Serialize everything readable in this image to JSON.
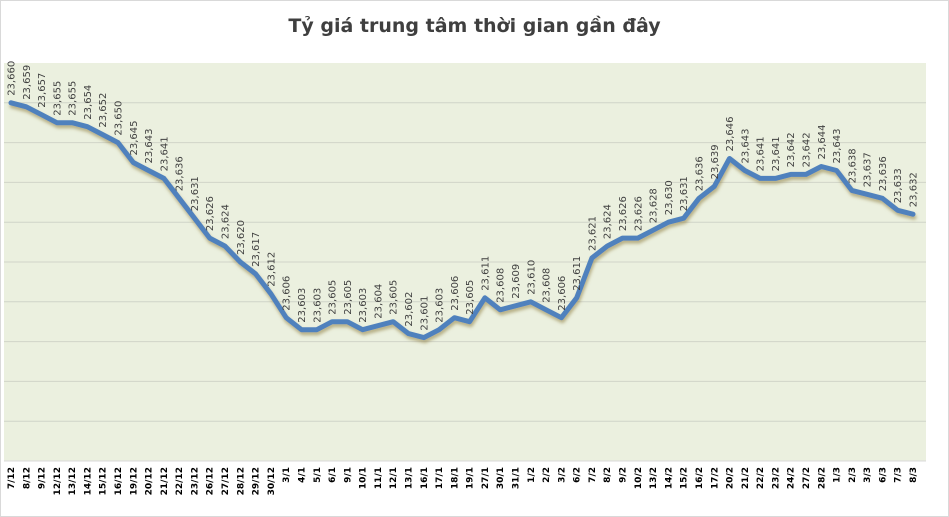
{
  "chart_data": {
    "type": "line",
    "title": "Tỷ giá trung tâm thời gian gần đây",
    "xlabel": "",
    "ylabel": "",
    "ylim": [
      23570,
      23670
    ],
    "grid": true,
    "legend": "none",
    "y_axis_visible": false,
    "line_color": "#4F81BD",
    "plot_background": "#EBF0DF",
    "categories": [
      "7/12",
      "8/12",
      "9/12",
      "12/12",
      "13/12",
      "14/12",
      "15/12",
      "16/12",
      "19/12",
      "20/12",
      "21/12",
      "22/12",
      "23/12",
      "26/12",
      "27/12",
      "28/12",
      "29/12",
      "30/12",
      "3/1",
      "4/1",
      "5/1",
      "6/1",
      "9/1",
      "10/1",
      "11/1",
      "12/1",
      "13/1",
      "16/1",
      "17/1",
      "18/1",
      "19/1",
      "27/1",
      "30/1",
      "31/1",
      "1/2",
      "2/2",
      "3/2",
      "6/2",
      "7/2",
      "8/2",
      "9/2",
      "10/2",
      "13/2",
      "14/2",
      "15/2",
      "16/2",
      "17/2",
      "20/2",
      "21/2",
      "22/2",
      "23/2",
      "24/2",
      "27/2",
      "28/2",
      "1/3",
      "2/3",
      "3/3",
      "6/3",
      "7/3",
      "8/3"
    ],
    "values": [
      23660,
      23659,
      23657,
      23655,
      23655,
      23654,
      23652,
      23650,
      23645,
      23643,
      23641,
      23636,
      23631,
      23626,
      23624,
      23620,
      23617,
      23612,
      23606,
      23603,
      23603,
      23605,
      23605,
      23603,
      23604,
      23605,
      23602,
      23601,
      23603,
      23606,
      23605,
      23611,
      23608,
      23609,
      23610,
      23608,
      23606,
      23611,
      23621,
      23624,
      23626,
      23626,
      23628,
      23630,
      23631,
      23636,
      23639,
      23646,
      23643,
      23641,
      23641,
      23642,
      23642,
      23644,
      23643,
      23638,
      23637,
      23636,
      23633,
      23632
    ],
    "data_labels": [
      "23,660",
      "23,659",
      "23,657",
      "23,655",
      "23,655",
      "23,654",
      "23,652",
      "23,650",
      "23,645",
      "23,643",
      "23,641",
      "23,636",
      "23,631",
      "23,626",
      "23,624",
      "23,620",
      "23,617",
      "23,612",
      "23,606",
      "23,603",
      "23,603",
      "23,605",
      "23,605",
      "23,603",
      "23,604",
      "23,605",
      "23,602",
      "23,601",
      "23,603",
      "23,606",
      "23,605",
      "23,611",
      "23,608",
      "23,609",
      "23,610",
      "23,608",
      "23,606",
      "23,611",
      "23,621",
      "23,624",
      "23,626",
      "23,626",
      "23,628",
      "23,630",
      "23,631",
      "23,636",
      "23,639",
      "23,646",
      "23,643",
      "23,641",
      "23,641",
      "23,642",
      "23,642",
      "23,644",
      "23,643",
      "23,638",
      "23,637",
      "23,636",
      "23,633",
      "23,632"
    ]
  }
}
